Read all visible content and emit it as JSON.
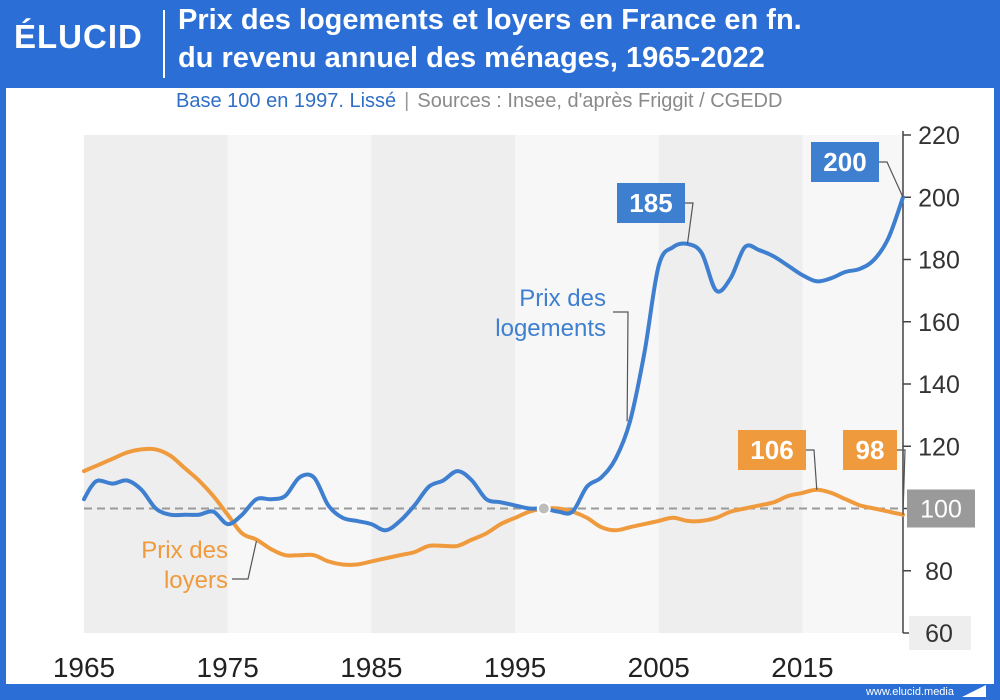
{
  "brand": {
    "logo": "ÉLUCID",
    "footer_url": "www.elucid.media"
  },
  "header": {
    "title_line1": "Prix des logements et loyers en France en fn.",
    "title_line2": "du revenu annuel des ménages, 1965-2022"
  },
  "subtitle": {
    "base": "Base 100 en 1997. Lissé",
    "separator": "|",
    "sources": "Sources : Insee, d'après Friggit / CGEDD"
  },
  "colors": {
    "header_bg": "#2b6fd6",
    "prix_logements": "#3f7fd0",
    "prix_loyers": "#f09a3e",
    "reference": "#9a9a9a",
    "band": "#eeeeee"
  },
  "chart_data": {
    "type": "line",
    "title": "Prix des logements et loyers en France en fn. du revenu annuel des ménages, 1965-2022",
    "subtitle": "Base 100 en 1997. Lissé",
    "x_ticks": [
      "1965",
      "1975",
      "1985",
      "1995",
      "2005",
      "2015"
    ],
    "y_ticks": [
      "60",
      "80",
      "100",
      "120",
      "140",
      "160",
      "180",
      "200",
      "220"
    ],
    "xlim": [
      1965,
      2022
    ],
    "ylim": [
      60,
      220
    ],
    "reference_line": {
      "y": 100,
      "label": "100",
      "point_x": 1997
    },
    "shaded_bands": [
      [
        1965,
        1975
      ],
      [
        1985,
        1995
      ],
      [
        2005,
        2015
      ]
    ],
    "series": [
      {
        "name": "Prix des logements",
        "label_lines": [
          "Prix des",
          "logements"
        ],
        "color": "#3f7fd0",
        "x": [
          1965,
          1965.5,
          1966,
          1967,
          1968,
          1969,
          1970,
          1971,
          1972,
          1973,
          1974,
          1975,
          1976,
          1977,
          1978,
          1979,
          1980,
          1981,
          1982,
          1983,
          1984,
          1985,
          1986,
          1987,
          1988,
          1989,
          1990,
          1991,
          1992,
          1993,
          1994,
          1995,
          1996,
          1997,
          1998,
          1999,
          2000,
          2001,
          2002,
          2003,
          2004,
          2005,
          2006,
          2007,
          2008,
          2009,
          2010,
          2011,
          2012,
          2013,
          2014,
          2015,
          2016,
          2017,
          2018,
          2019,
          2020,
          2021,
          2022
        ],
        "y": [
          103,
          107,
          109,
          108,
          109,
          106,
          100,
          98,
          98,
          98,
          99,
          95,
          98,
          103,
          103,
          104,
          110,
          110,
          101,
          97,
          96,
          95,
          93,
          96,
          101,
          107,
          109,
          112,
          109,
          103,
          102,
          101,
          100,
          100,
          99,
          99,
          107,
          110,
          116,
          128,
          150,
          178,
          184,
          185,
          182,
          170,
          174,
          184,
          183,
          181,
          178,
          175,
          173,
          174,
          176,
          177,
          180,
          187,
          200
        ]
      },
      {
        "name": "Prix des loyers",
        "label_lines": [
          "Prix des",
          "loyers"
        ],
        "color": "#f09a3e",
        "x": [
          1965,
          1966,
          1967,
          1968,
          1969,
          1970,
          1971,
          1972,
          1973,
          1974,
          1975,
          1976,
          1977,
          1978,
          1979,
          1980,
          1981,
          1982,
          1983,
          1984,
          1985,
          1986,
          1987,
          1988,
          1989,
          1990,
          1991,
          1992,
          1993,
          1994,
          1995,
          1996,
          1997,
          1998,
          1999,
          2000,
          2001,
          2002,
          2003,
          2004,
          2005,
          2006,
          2007,
          2008,
          2009,
          2010,
          2011,
          2012,
          2013,
          2014,
          2015,
          2016,
          2017,
          2018,
          2019,
          2020,
          2021,
          2022
        ],
        "y": [
          112,
          114,
          116,
          118,
          119,
          119,
          117,
          113,
          109,
          104,
          98,
          92,
          90,
          87,
          85,
          85,
          85,
          83,
          82,
          82,
          83,
          84,
          85,
          86,
          88,
          88,
          88,
          90,
          92,
          95,
          97,
          99,
          100,
          100,
          99,
          97,
          94,
          93,
          94,
          95,
          96,
          97,
          96,
          96,
          97,
          99,
          100,
          101,
          102,
          104,
          105,
          106,
          105,
          103,
          101,
          100,
          99,
          98
        ]
      }
    ],
    "annotations": [
      {
        "series": "Prix des logements",
        "x": 2007,
        "y": 185,
        "text": "185"
      },
      {
        "series": "Prix des logements",
        "x": 2022,
        "y": 200,
        "text": "200"
      },
      {
        "series": "Prix des loyers",
        "x": 2016,
        "y": 106,
        "text": "106"
      },
      {
        "series": "Prix des loyers",
        "x": 2022,
        "y": 98,
        "text": "98"
      }
    ]
  }
}
